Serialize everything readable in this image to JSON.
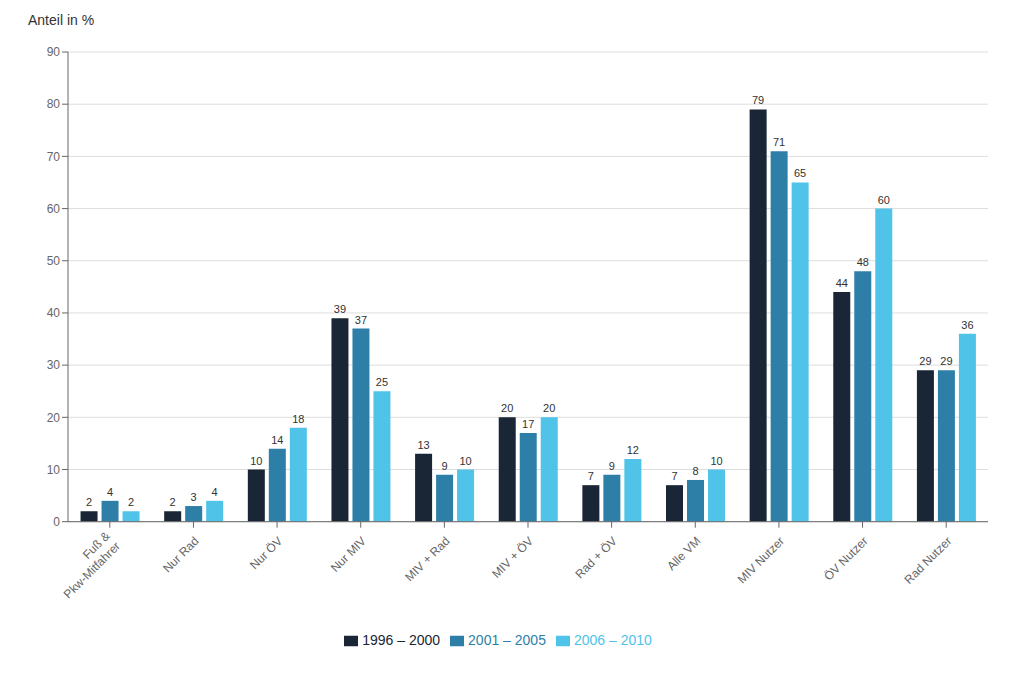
{
  "chart_data": {
    "type": "bar",
    "ylabel": "Anteil in %",
    "categories": [
      "Fuß &\nPkw-Mitfahrer",
      "Nur Rad",
      "Nur ÖV",
      "Nur MIV",
      "MIV + Rad",
      "MIV + ÖV",
      "Rad + ÖV",
      "Alle VM",
      "MIV Nutzer",
      "ÖV Nutzer",
      "Rad Nutzer"
    ],
    "series": [
      {
        "name": "1996 – 2000",
        "color": "#1a2535",
        "values": [
          2,
          2,
          10,
          39,
          13,
          20,
          7,
          7,
          79,
          44,
          29
        ]
      },
      {
        "name": "2001 – 2005",
        "color": "#2e7fa8",
        "values": [
          4,
          3,
          14,
          37,
          9,
          17,
          9,
          8,
          71,
          48,
          29
        ]
      },
      {
        "name": "2006 – 2010",
        "color": "#4fc3e8",
        "values": [
          2,
          4,
          18,
          25,
          10,
          20,
          12,
          10,
          65,
          60,
          36
        ]
      }
    ],
    "ylim": [
      0,
      90
    ],
    "yticks": [
      0,
      10,
      20,
      30,
      40,
      50,
      60,
      70,
      80,
      90
    ],
    "grid": true,
    "data_labels": true,
    "legend": "bottom"
  }
}
